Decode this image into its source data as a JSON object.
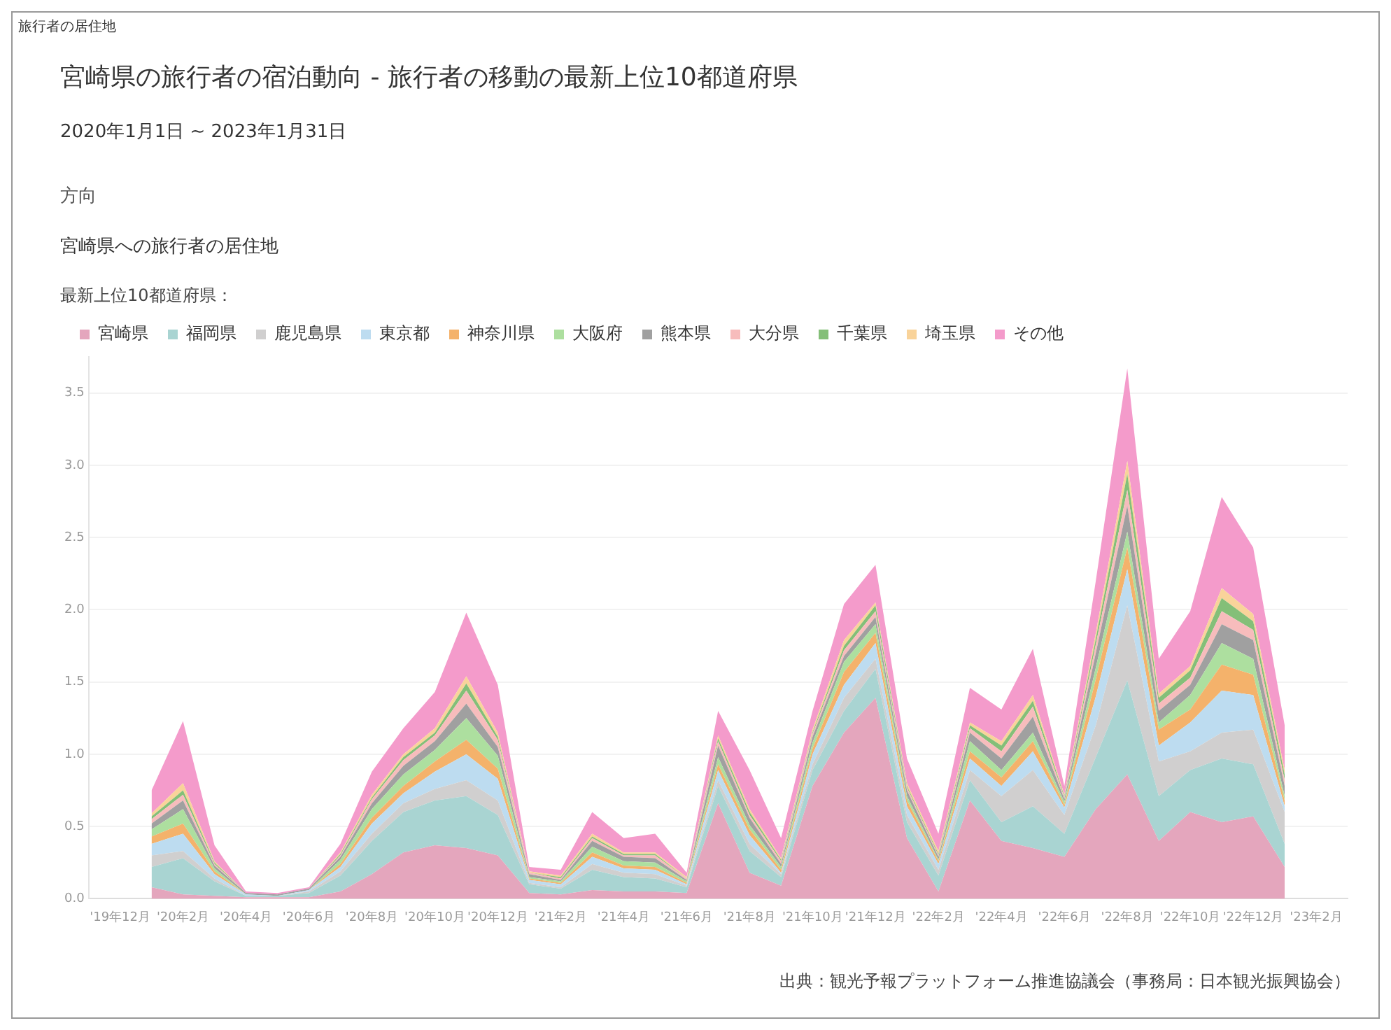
{
  "chart_data": {
    "type": "area",
    "title": "宮崎県の旅行者の宿泊動向 - 旅行者の移動の最新上位10都道府県",
    "subtitle": "2020年1月1日 ~ 2023年1月31日",
    "legend_title": "最新上位10都道府県：",
    "annotations": [
      "旅行者の居住地",
      "方向",
      "宮崎県への旅行者の居住地",
      "出典：観光予報プラットフォーム推進協議会（事務局：日本観光振興協会）"
    ],
    "x": [
      "2020-01",
      "2020-02",
      "2020-03",
      "2020-04",
      "2020-05",
      "2020-06",
      "2020-07",
      "2020-08",
      "2020-09",
      "2020-10",
      "2020-11",
      "2020-12",
      "2021-01",
      "2021-02",
      "2021-03",
      "2021-04",
      "2021-05",
      "2021-06",
      "2021-07",
      "2021-08",
      "2021-09",
      "2021-10",
      "2021-11",
      "2021-12",
      "2022-01",
      "2022-02",
      "2022-03",
      "2022-04",
      "2022-05",
      "2022-06",
      "2022-07",
      "2022-08",
      "2022-09",
      "2022-10",
      "2022-11",
      "2022-12",
      "2023-01"
    ],
    "stacked": true,
    "grid": "y",
    "legend": "top",
    "marker": "none",
    "xlim": [
      "2019-11",
      "2023-03"
    ],
    "xticks": [
      {
        "value": "2019-12",
        "label": "'19年12月"
      },
      {
        "value": "2020-02",
        "label": "'20年2月"
      },
      {
        "value": "2020-04",
        "label": "'20年4月"
      },
      {
        "value": "2020-06",
        "label": "'20年6月"
      },
      {
        "value": "2020-08",
        "label": "'20年8月"
      },
      {
        "value": "2020-10",
        "label": "'20年10月"
      },
      {
        "value": "2020-12",
        "label": "'20年12月"
      },
      {
        "value": "2021-02",
        "label": "'21年2月"
      },
      {
        "value": "2021-04",
        "label": "'21年4月"
      },
      {
        "value": "2021-06",
        "label": "'21年6月"
      },
      {
        "value": "2021-08",
        "label": "'21年8月"
      },
      {
        "value": "2021-10",
        "label": "'21年10月"
      },
      {
        "value": "2021-12",
        "label": "'21年12月"
      },
      {
        "value": "2022-02",
        "label": "'22年2月"
      },
      {
        "value": "2022-04",
        "label": "'22年4月"
      },
      {
        "value": "2022-06",
        "label": "'22年6月"
      },
      {
        "value": "2022-08",
        "label": "'22年8月"
      },
      {
        "value": "2022-10",
        "label": "'22年10月"
      },
      {
        "value": "2022-12",
        "label": "'22年12月"
      },
      {
        "value": "2023-02",
        "label": "'23年2月"
      }
    ],
    "ylim": [
      0,
      3.75
    ],
    "yticks": [
      {
        "value": 0,
        "label": "0.0"
      },
      {
        "value": 0.5,
        "label": "0.5"
      },
      {
        "value": 1,
        "label": "1.0"
      },
      {
        "value": 1.5,
        "label": "1.5"
      },
      {
        "value": 2,
        "label": "2.0"
      },
      {
        "value": 2.5,
        "label": "2.5"
      },
      {
        "value": 3,
        "label": "3.0"
      },
      {
        "value": 3.5,
        "label": "3.5"
      }
    ],
    "series": [
      {
        "name": "宮崎県",
        "color": "#e4a6bd",
        "values": [
          0.08,
          0.03,
          0.02,
          0.01,
          0.01,
          0.01,
          0.05,
          0.17,
          0.32,
          0.37,
          0.35,
          0.3,
          0.04,
          0.03,
          0.06,
          0.05,
          0.05,
          0.04,
          0.66,
          0.18,
          0.09,
          0.78,
          1.15,
          1.39,
          0.42,
          0.05,
          0.68,
          0.4,
          0.35,
          0.29,
          0.62,
          0.86,
          0.4,
          0.6,
          0.53,
          0.57,
          0.22
        ]
      },
      {
        "name": "福岡県",
        "color": "#a9d4d2",
        "values": [
          0.14,
          0.25,
          0.1,
          0.01,
          0.01,
          0.03,
          0.11,
          0.23,
          0.28,
          0.31,
          0.36,
          0.28,
          0.06,
          0.04,
          0.14,
          0.1,
          0.09,
          0.04,
          0.12,
          0.15,
          0.06,
          0.11,
          0.15,
          0.2,
          0.11,
          0.11,
          0.14,
          0.13,
          0.29,
          0.16,
          0.36,
          0.65,
          0.31,
          0.29,
          0.44,
          0.36,
          0.16
        ]
      },
      {
        "name": "鹿児島県",
        "color": "#d0cfcf",
        "values": [
          0.08,
          0.05,
          0.02,
          0,
          0,
          0.01,
          0.03,
          0.05,
          0.06,
          0.08,
          0.11,
          0.1,
          0.01,
          0.01,
          0.04,
          0.03,
          0.03,
          0.01,
          0.04,
          0.05,
          0.02,
          0.04,
          0.09,
          0.07,
          0.05,
          0.04,
          0.07,
          0.18,
          0.25,
          0.13,
          0.22,
          0.52,
          0.24,
          0.13,
          0.18,
          0.24,
          0.22
        ]
      },
      {
        "name": "東京都",
        "color": "#bddcf0",
        "values": [
          0.08,
          0.12,
          0.03,
          0.01,
          0,
          0.01,
          0.03,
          0.07,
          0.07,
          0.12,
          0.18,
          0.15,
          0.02,
          0.02,
          0.05,
          0.03,
          0.03,
          0.01,
          0.07,
          0.06,
          0.01,
          0.07,
          0.09,
          0.11,
          0.06,
          0.04,
          0.08,
          0.07,
          0.13,
          0.05,
          0.2,
          0.25,
          0.11,
          0.2,
          0.29,
          0.24,
          0.04
        ]
      },
      {
        "name": "神奈川県",
        "color": "#f4b26b",
        "values": [
          0.05,
          0.07,
          0.02,
          0,
          0,
          0,
          0.02,
          0.04,
          0.05,
          0.07,
          0.1,
          0.07,
          0.01,
          0.01,
          0.03,
          0.02,
          0.02,
          0.01,
          0.04,
          0.04,
          0.02,
          0.04,
          0.09,
          0.07,
          0.04,
          0.02,
          0.05,
          0.06,
          0.07,
          0.02,
          0.12,
          0.15,
          0.11,
          0.09,
          0.18,
          0.14,
          0.04
        ]
      },
      {
        "name": "大阪府",
        "color": "#addf9f",
        "values": [
          0.05,
          0.1,
          0.02,
          0,
          0,
          0,
          0.03,
          0.06,
          0.08,
          0.08,
          0.15,
          0.09,
          0.01,
          0.01,
          0.04,
          0.03,
          0.03,
          0.01,
          0.05,
          0.03,
          0.02,
          0.04,
          0.07,
          0.06,
          0.03,
          0.01,
          0.07,
          0.05,
          0.06,
          0.02,
          0.08,
          0.11,
          0.05,
          0.1,
          0.15,
          0.11,
          0.03
        ]
      },
      {
        "name": "熊本県",
        "color": "#a0a0a0",
        "values": [
          0.04,
          0.06,
          0.02,
          0.01,
          0.01,
          0.01,
          0.02,
          0.04,
          0.06,
          0.06,
          0.1,
          0.06,
          0.02,
          0.01,
          0.04,
          0.03,
          0.03,
          0.01,
          0.08,
          0.05,
          0.02,
          0.04,
          0.04,
          0.05,
          0.04,
          0.02,
          0.06,
          0.08,
          0.11,
          0.02,
          0.1,
          0.18,
          0.08,
          0.07,
          0.13,
          0.13,
          0.07
        ]
      },
      {
        "name": "大分県",
        "color": "#f7bcbc",
        "values": [
          0.03,
          0.04,
          0.01,
          0,
          0,
          0,
          0.01,
          0.03,
          0.04,
          0.04,
          0.09,
          0.05,
          0.01,
          0.01,
          0.02,
          0.01,
          0.02,
          0.01,
          0.03,
          0.02,
          0.02,
          0.02,
          0.04,
          0.04,
          0.02,
          0.01,
          0.03,
          0.05,
          0.07,
          0.01,
          0.06,
          0.11,
          0.05,
          0.05,
          0.09,
          0.07,
          0.04
        ]
      },
      {
        "name": "千葉県",
        "color": "#84bf78",
        "values": [
          0.02,
          0.03,
          0.01,
          0,
          0,
          0,
          0.01,
          0.01,
          0.02,
          0.02,
          0.05,
          0.02,
          0,
          0.01,
          0.01,
          0.01,
          0.01,
          0,
          0.02,
          0.02,
          0.01,
          0.01,
          0.03,
          0.04,
          0.01,
          0.01,
          0.02,
          0.04,
          0.04,
          0.01,
          0.04,
          0.11,
          0.04,
          0.05,
          0.09,
          0.06,
          0.04
        ]
      },
      {
        "name": "埼玉県",
        "color": "#f9d39a",
        "values": [
          0.02,
          0.05,
          0.01,
          0,
          0,
          0,
          0.01,
          0.02,
          0.02,
          0.03,
          0.05,
          0.03,
          0.01,
          0.01,
          0.02,
          0.01,
          0.01,
          0.01,
          0.02,
          0.02,
          0.01,
          0.02,
          0.04,
          0.02,
          0.02,
          0.02,
          0.02,
          0.03,
          0.04,
          0.01,
          0.04,
          0.09,
          0.03,
          0.03,
          0.07,
          0.05,
          0.03
        ]
      },
      {
        "name": "その他",
        "color": "#f49bcb",
        "values": [
          0.16,
          0.43,
          0.11,
          0.01,
          0.01,
          0.01,
          0.06,
          0.16,
          0.18,
          0.25,
          0.44,
          0.33,
          0.03,
          0.04,
          0.15,
          0.1,
          0.13,
          0.03,
          0.17,
          0.27,
          0.14,
          0.13,
          0.25,
          0.26,
          0.17,
          0.12,
          0.24,
          0.22,
          0.32,
          0.06,
          0.36,
          0.64,
          0.24,
          0.38,
          0.63,
          0.46,
          0.31
        ]
      }
    ]
  }
}
